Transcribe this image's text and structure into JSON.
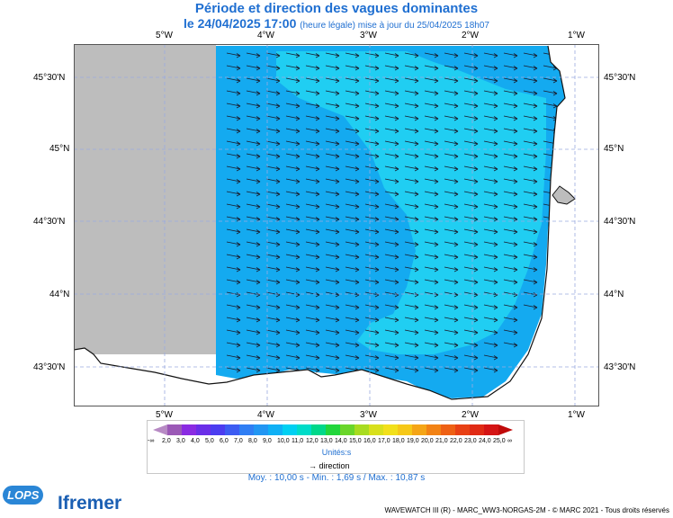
{
  "title": "Période et direction des vagues dominantes",
  "subtitle": "le 24/04/2025 17:00",
  "subtitle_note": "(heure légale) mise à jour du 25/04/2025 18h07",
  "chart_data": {
    "type": "heatmap",
    "lon_ticks": [
      "5°W",
      "4°W",
      "3°W",
      "2°W",
      "1°W"
    ],
    "lat_ticks": [
      "45°30'N",
      "45°N",
      "44°30'N",
      "44°N",
      "43°30'N"
    ],
    "colorbar_labels": [
      "-∞",
      "2,0",
      "3,0",
      "4,0",
      "5,0",
      "6,0",
      "7,0",
      "8,0",
      "9,0",
      "10,0",
      "11,0",
      "12,0",
      "13,0",
      "14,0",
      "15,0",
      "16,0",
      "17,0",
      "18,0",
      "19,0",
      "20,0",
      "21,0",
      "22,0",
      "23,0",
      "24,0",
      "25,0",
      "∞"
    ],
    "colorbar_colors": [
      "#b78ac4",
      "#9b59b6",
      "#8a2be2",
      "#6a2ee8",
      "#4b3cf0",
      "#3c5cf2",
      "#2f7ef4",
      "#2196f3",
      "#0fb0f5",
      "#00d0f2",
      "#00dcc8",
      "#00d88a",
      "#22d63c",
      "#6ad62a",
      "#a8dc20",
      "#d8e01c",
      "#f2e01a",
      "#f6c818",
      "#f5a516",
      "#f28214",
      "#ee6014",
      "#e84014",
      "#e02a14",
      "#d41414",
      "#c00a0a"
    ],
    "unit": "Unités:s",
    "direction_label": "direction",
    "stats": "Moy. : 10,00 s  -  Min. : 1,69 s / Max. : 10,87 s",
    "field_colors": {
      "land": "#bdbdbd",
      "period_lower": "#14aaf0",
      "period_higher": "#20cef2"
    }
  },
  "footer": "WAVEWATCH III (R) - MARC_WW3-NORGAS-2M - © MARC 2021 - Tous droits réservés",
  "logos": {
    "lops": "LOPS",
    "ifremer": "Ifremer"
  }
}
